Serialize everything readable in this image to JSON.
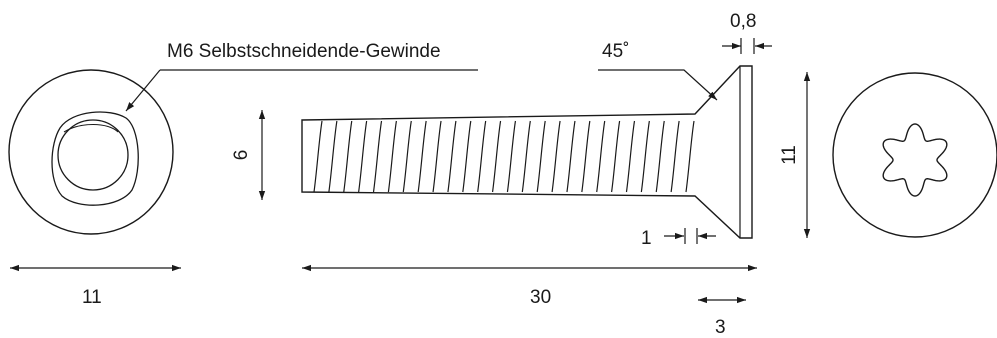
{
  "labels": {
    "thread_note": "M6 Selbstschneidende-Gewinde",
    "angle": "45˚",
    "head_height": "0,8",
    "thread_diameter": "6",
    "head_diameter": "11",
    "bottom_view_diameter": "11",
    "length": "30",
    "small_step": "1",
    "drive_depth": "3"
  },
  "colors": {
    "line": "#1a1a1a",
    "background": "#ffffff"
  },
  "icons": {
    "drive": "torx-six-lobe-icon"
  }
}
